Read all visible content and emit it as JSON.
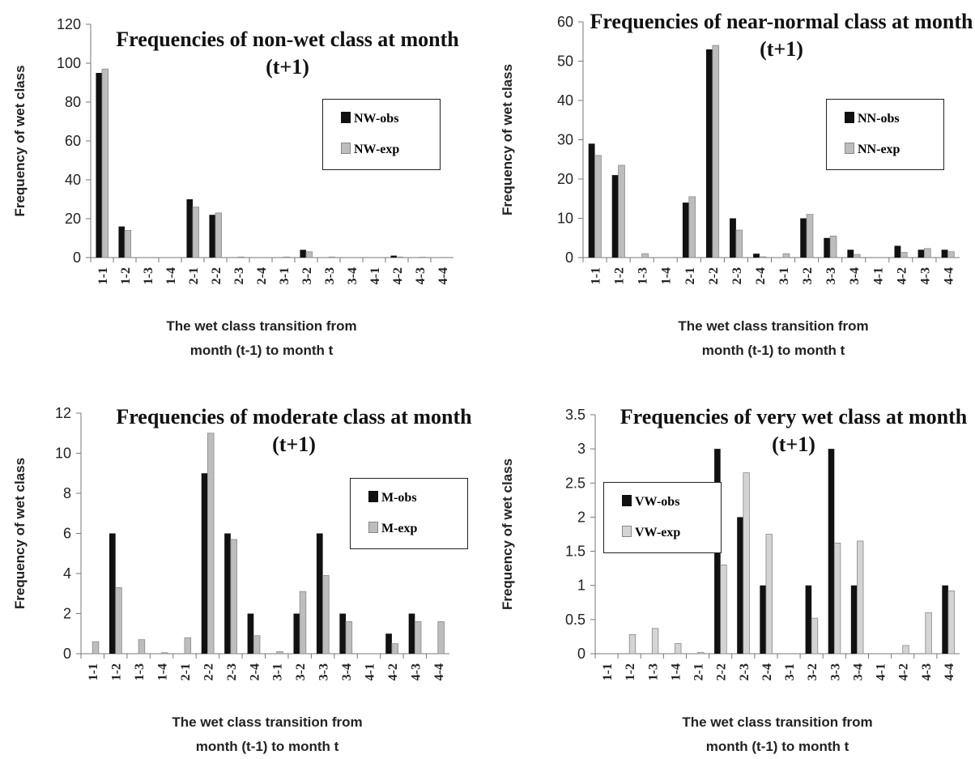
{
  "chart_data": [
    {
      "type": "bar",
      "title": "Frequencies of non-wet class at month (t+1)",
      "x_label": "The wet class transition from month (t-1) to month t",
      "y_label": "Frequency of wet class",
      "categories": [
        "1-1",
        "1-2",
        "1-3",
        "1-4",
        "2-1",
        "2-2",
        "2-3",
        "2-4",
        "3-1",
        "3-2",
        "3-3",
        "3-4",
        "4-1",
        "4-2",
        "4-3",
        "4-4"
      ],
      "series": [
        {
          "name": "NW-obs",
          "color": "#111111",
          "values": [
            95,
            16,
            0,
            0,
            30,
            22,
            0,
            0,
            0,
            4,
            0,
            0,
            0,
            1,
            0,
            0
          ]
        },
        {
          "name": "NW-exp",
          "color": "#bdbdbd",
          "values": [
            97,
            14,
            0,
            0,
            26,
            23,
            0.3,
            0,
            0.3,
            3,
            0.3,
            0,
            0,
            0.3,
            0.2,
            0.1
          ]
        }
      ],
      "ylim": [
        0,
        120
      ],
      "yticks": [
        0,
        20,
        40,
        60,
        80,
        100,
        120
      ],
      "legend": "right"
    },
    {
      "type": "bar",
      "title": "Frequencies of near-normal class at month (t+1)",
      "x_label": "The wet class transition from month (t-1) to month t",
      "y_label": "Frequency of wet class",
      "categories": [
        "1-1",
        "1-2",
        "1-3",
        "1-4",
        "2-1",
        "2-2",
        "2-3",
        "2-4",
        "3-1",
        "3-2",
        "3-3",
        "3-4",
        "4-1",
        "4-2",
        "4-3",
        "4-4"
      ],
      "series": [
        {
          "name": "NN-obs",
          "color": "#111111",
          "values": [
            29,
            21,
            0,
            0,
            14,
            53,
            10,
            1,
            0,
            10,
            5,
            2,
            0,
            3,
            2,
            2
          ]
        },
        {
          "name": "NN-exp",
          "color": "#bdbdbd",
          "values": [
            26,
            23.5,
            1,
            0,
            15.5,
            54,
            7,
            0.2,
            1,
            11,
            5.5,
            0.8,
            0,
            1.3,
            2.3,
            1.5
          ]
        }
      ],
      "ylim": [
        0,
        60
      ],
      "yticks": [
        0,
        10,
        20,
        30,
        40,
        50,
        60
      ],
      "legend": "right"
    },
    {
      "type": "bar",
      "title": "Frequencies of moderate class at month (t+1)",
      "x_label": "The wet class transition from month (t-1) to month t",
      "y_label": "Frequency of wet class",
      "categories": [
        "1-1",
        "1-2",
        "1-3",
        "1-4",
        "2-1",
        "2-2",
        "2-3",
        "2-4",
        "3-1",
        "3-2",
        "3-3",
        "3-4",
        "4-1",
        "4-2",
        "4-3",
        "4-4"
      ],
      "series": [
        {
          "name": "M-obs",
          "color": "#111111",
          "values": [
            0,
            6,
            0,
            0,
            0,
            9,
            6,
            2,
            0,
            2,
            6,
            2,
            0,
            1,
            2,
            0
          ]
        },
        {
          "name": "M-exp",
          "color": "#bdbdbd",
          "values": [
            0.6,
            3.3,
            0.7,
            0.05,
            0.8,
            11,
            5.7,
            0.9,
            0.1,
            3.1,
            3.9,
            1.6,
            0,
            0.5,
            1.6,
            1.6
          ]
        }
      ],
      "ylim": [
        0,
        12
      ],
      "yticks": [
        0,
        2,
        4,
        6,
        8,
        10,
        12
      ],
      "legend": "right"
    },
    {
      "type": "bar",
      "title": "Frequencies of very wet class at month (t+1)",
      "x_label": "The wet class transition from month (t-1) to month t",
      "y_label": "Frequency of wet class",
      "categories": [
        "1-1",
        "1-2",
        "1-3",
        "1-4",
        "2-1",
        "2-2",
        "2-3",
        "2-4",
        "3-1",
        "3-2",
        "3-3",
        "3-4",
        "4-1",
        "4-2",
        "4-3",
        "4-4"
      ],
      "series": [
        {
          "name": "VW-obs",
          "color": "#111111",
          "values": [
            0,
            0,
            0,
            0,
            0,
            3,
            2,
            1,
            0,
            1,
            3,
            1,
            0,
            0,
            0,
            1
          ]
        },
        {
          "name": "VW-exp",
          "color": "#d4d4d4",
          "values": [
            0,
            0.28,
            0.37,
            0.15,
            0.02,
            1.3,
            2.65,
            1.75,
            0,
            0.52,
            1.62,
            1.65,
            0,
            0.12,
            0.6,
            0.92
          ]
        }
      ],
      "ylim": [
        0,
        3.5
      ],
      "yticks": [
        0,
        0.5,
        1,
        1.5,
        2,
        2.5,
        3,
        3.5
      ],
      "legend": "left"
    }
  ]
}
